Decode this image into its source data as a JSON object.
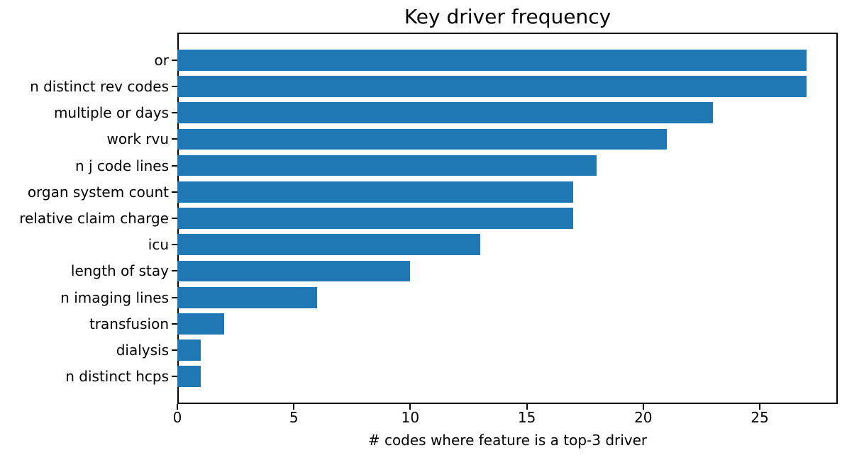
{
  "chart_data": {
    "type": "bar",
    "orientation": "horizontal",
    "title": "Key driver frequency",
    "xlabel": "# codes where feature is a top-3 driver",
    "ylabel": "",
    "categories": [
      "or",
      "n distinct rev codes",
      "multiple or days",
      "work rvu",
      "n j code lines",
      "organ system count",
      "relative claim charge",
      "icu",
      "length of stay",
      "n imaging lines",
      "transfusion",
      "dialysis",
      "n distinct hcps"
    ],
    "values": [
      27,
      27,
      23,
      21,
      18,
      17,
      17,
      13,
      10,
      6,
      2,
      1,
      1
    ],
    "xlim": [
      0,
      28.35
    ],
    "xticks": [
      0,
      5,
      10,
      15,
      20,
      25
    ],
    "bar_color": "#1f77b4",
    "axis_color": "#000000",
    "background_color": "#ffffff",
    "grid": false,
    "legend_position": "none"
  }
}
